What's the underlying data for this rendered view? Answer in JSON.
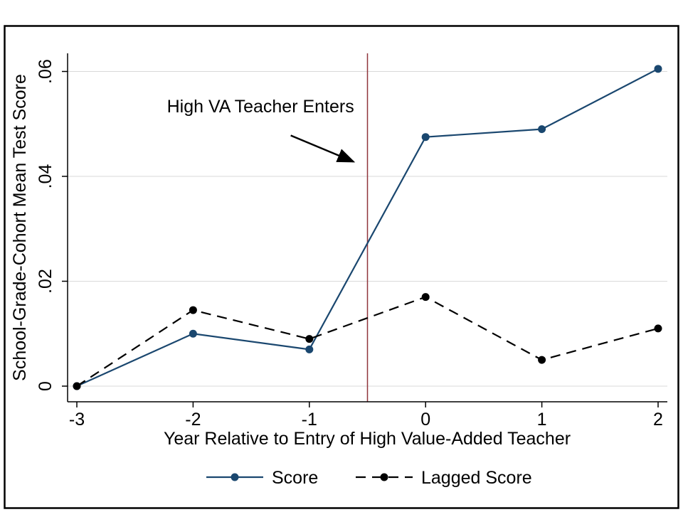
{
  "chart_data": {
    "type": "line",
    "title": "",
    "xlabel": "Year Relative to Entry of High Value-Added Teacher",
    "ylabel": "School-Grade-Cohort Mean Test Score",
    "x": [
      -3,
      -2,
      -1,
      0,
      1,
      2
    ],
    "x_tick_labels": [
      "-3",
      "-2",
      "-1",
      "0",
      "1",
      "2"
    ],
    "y_ticks": [
      {
        "value": 0,
        "label": "0"
      },
      {
        "value": 0.02,
        "label": ".02"
      },
      {
        "value": 0.04,
        "label": ".04"
      },
      {
        "value": 0.06,
        "label": ".06"
      }
    ],
    "xlim": [
      -3,
      2
    ],
    "ylim": [
      0,
      0.06
    ],
    "grid": "horizontal-only",
    "legend_position": "bottom",
    "series": [
      {
        "name": "Score",
        "line_style": "solid",
        "marker": "circle",
        "color": "#1a476f",
        "values": [
          0.0,
          0.01,
          0.007,
          0.0475,
          0.049,
          0.0605
        ]
      },
      {
        "name": "Lagged Score",
        "line_style": "dashed",
        "marker": "circle",
        "color": "#000000",
        "values": [
          0.0,
          0.0145,
          0.009,
          0.017,
          0.005,
          0.011
        ]
      }
    ],
    "reference_line": {
      "axis": "x",
      "value": -0.5,
      "color": "#90353b"
    },
    "annotation": {
      "text": "High VA Teacher Enters",
      "text_at": [
        -1.42,
        0.0522
      ],
      "arrow_from": [
        -1.16,
        0.0478
      ],
      "arrow_to": [
        -0.62,
        0.0428
      ]
    },
    "legend": [
      "Score",
      "Lagged Score"
    ]
  }
}
